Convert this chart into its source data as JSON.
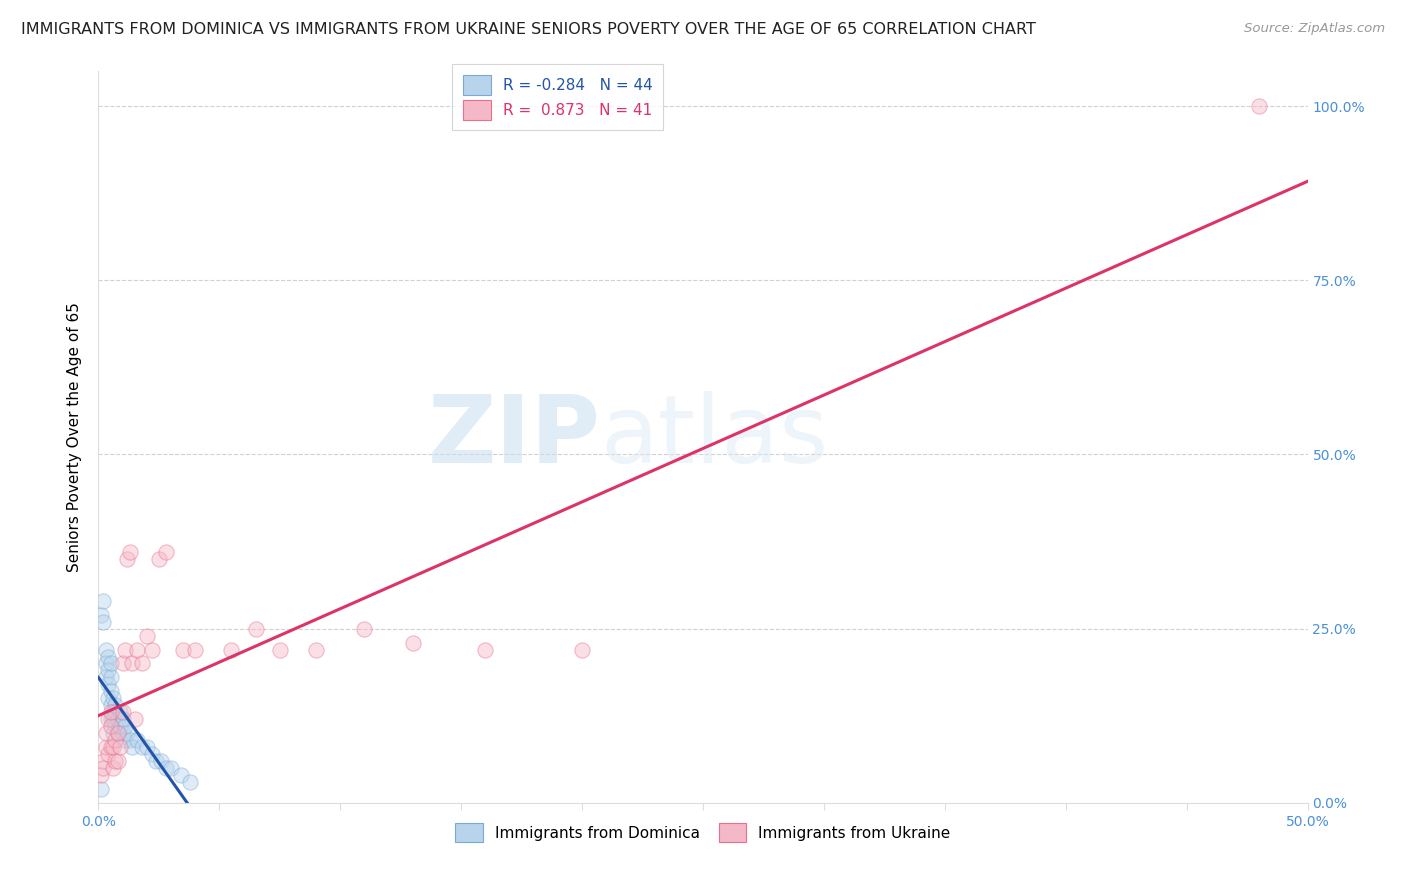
{
  "title": "IMMIGRANTS FROM DOMINICA VS IMMIGRANTS FROM UKRAINE SENIORS POVERTY OVER THE AGE OF 65 CORRELATION CHART",
  "source_text": "Source: ZipAtlas.com",
  "ylabel": "Seniors Poverty Over the Age of 65",
  "xlim": [
    0.0,
    0.5
  ],
  "ylim": [
    0.0,
    1.05
  ],
  "x_ticks": [
    0.0,
    0.05,
    0.1,
    0.15,
    0.2,
    0.25,
    0.3,
    0.35,
    0.4,
    0.45,
    0.5
  ],
  "x_tick_labels_show": [
    "0.0%",
    "",
    "",
    "",
    "",
    "",
    "",
    "",
    "",
    "",
    "50.0%"
  ],
  "y_ticks": [
    0.0,
    0.25,
    0.5,
    0.75,
    1.0
  ],
  "y_tick_labels_right": [
    "0.0%",
    "25.0%",
    "50.0%",
    "75.0%",
    "100.0%"
  ],
  "dominica_color": "#b8d4ed",
  "ukraine_color": "#f5b8c8",
  "dominica_edge": "#7aaad4",
  "ukraine_edge": "#e8708a",
  "trend_dominica_color": "#2255aa",
  "trend_ukraine_color": "#dd3366",
  "R_dominica": -0.284,
  "N_dominica": 44,
  "R_ukraine": 0.873,
  "N_ukraine": 41,
  "legend_label_dominica": "Immigrants from Dominica",
  "legend_label_ukraine": "Immigrants from Ukraine",
  "watermark_zip": "ZIP",
  "watermark_atlas": "atlas",
  "dominica_x": [
    0.001,
    0.002,
    0.002,
    0.003,
    0.003,
    0.003,
    0.004,
    0.004,
    0.004,
    0.004,
    0.005,
    0.005,
    0.005,
    0.005,
    0.005,
    0.006,
    0.006,
    0.006,
    0.006,
    0.007,
    0.007,
    0.007,
    0.008,
    0.008,
    0.009,
    0.009,
    0.01,
    0.01,
    0.011,
    0.011,
    0.012,
    0.013,
    0.014,
    0.016,
    0.018,
    0.02,
    0.022,
    0.024,
    0.026,
    0.028,
    0.03,
    0.034,
    0.038,
    0.001
  ],
  "dominica_y": [
    0.27,
    0.29,
    0.26,
    0.22,
    0.2,
    0.18,
    0.21,
    0.19,
    0.17,
    0.15,
    0.18,
    0.16,
    0.14,
    0.12,
    0.2,
    0.15,
    0.13,
    0.12,
    0.1,
    0.14,
    0.13,
    0.11,
    0.12,
    0.1,
    0.13,
    0.11,
    0.12,
    0.1,
    0.11,
    0.09,
    0.1,
    0.09,
    0.08,
    0.09,
    0.08,
    0.08,
    0.07,
    0.06,
    0.06,
    0.05,
    0.05,
    0.04,
    0.03,
    0.02
  ],
  "ukraine_x": [
    0.001,
    0.002,
    0.002,
    0.003,
    0.003,
    0.004,
    0.004,
    0.005,
    0.005,
    0.005,
    0.006,
    0.006,
    0.007,
    0.007,
    0.008,
    0.008,
    0.009,
    0.01,
    0.01,
    0.011,
    0.012,
    0.013,
    0.014,
    0.015,
    0.016,
    0.018,
    0.02,
    0.022,
    0.025,
    0.028,
    0.035,
    0.04,
    0.055,
    0.065,
    0.075,
    0.09,
    0.11,
    0.13,
    0.16,
    0.2,
    0.48
  ],
  "ukraine_y": [
    0.04,
    0.06,
    0.05,
    0.08,
    0.1,
    0.07,
    0.12,
    0.08,
    0.11,
    0.13,
    0.05,
    0.08,
    0.06,
    0.09,
    0.1,
    0.06,
    0.08,
    0.13,
    0.2,
    0.22,
    0.35,
    0.36,
    0.2,
    0.12,
    0.22,
    0.2,
    0.24,
    0.22,
    0.35,
    0.36,
    0.22,
    0.22,
    0.22,
    0.25,
    0.22,
    0.22,
    0.25,
    0.23,
    0.22,
    0.22,
    1.0
  ],
  "background_color": "#ffffff",
  "grid_color": "#cccccc",
  "title_fontsize": 11.5,
  "source_fontsize": 9.5,
  "axis_label_fontsize": 11,
  "tick_label_fontsize": 10,
  "tick_label_color_right": "#4a90d9",
  "tick_label_color_bottom": "#4a90d9",
  "scatter_size": 120,
  "scatter_alpha": 0.45,
  "dominica_trend_x_end": 0.38,
  "ukraine_trend_x_start": 0.0,
  "ukraine_trend_x_end": 0.5
}
